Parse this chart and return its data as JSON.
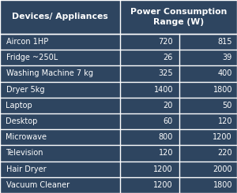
{
  "header_col1": "Devices/ Appliances",
  "header_col2": "Power Consumption\nRange (W)",
  "rows": [
    [
      "Aircon 1HP",
      "720",
      "815"
    ],
    [
      "Fridge ~250L",
      "26",
      "39"
    ],
    [
      "Washing Machine 7 kg",
      "325",
      "400"
    ],
    [
      "Dryer 5kg",
      "1400",
      "1800"
    ],
    [
      "Laptop",
      "20",
      "50"
    ],
    [
      "Desktop",
      "60",
      "120"
    ],
    [
      "Microwave",
      "800",
      "1200"
    ],
    [
      "Television",
      "120",
      "220"
    ],
    [
      "Hair Dryer",
      "1200",
      "2000"
    ],
    [
      "Vacuum Cleaner",
      "1200",
      "1800"
    ]
  ],
  "bg_color": "#2e4560",
  "header_bg": "#2e4560",
  "row_bg": "#2e4560",
  "text_color": "#ffffff",
  "border_color": "#ffffff",
  "col_split": 0.505,
  "col2_split": 0.755,
  "header_fontsize": 7.8,
  "row_fontsize": 7.0,
  "figsize": [
    3.0,
    2.45
  ],
  "dpi": 100
}
